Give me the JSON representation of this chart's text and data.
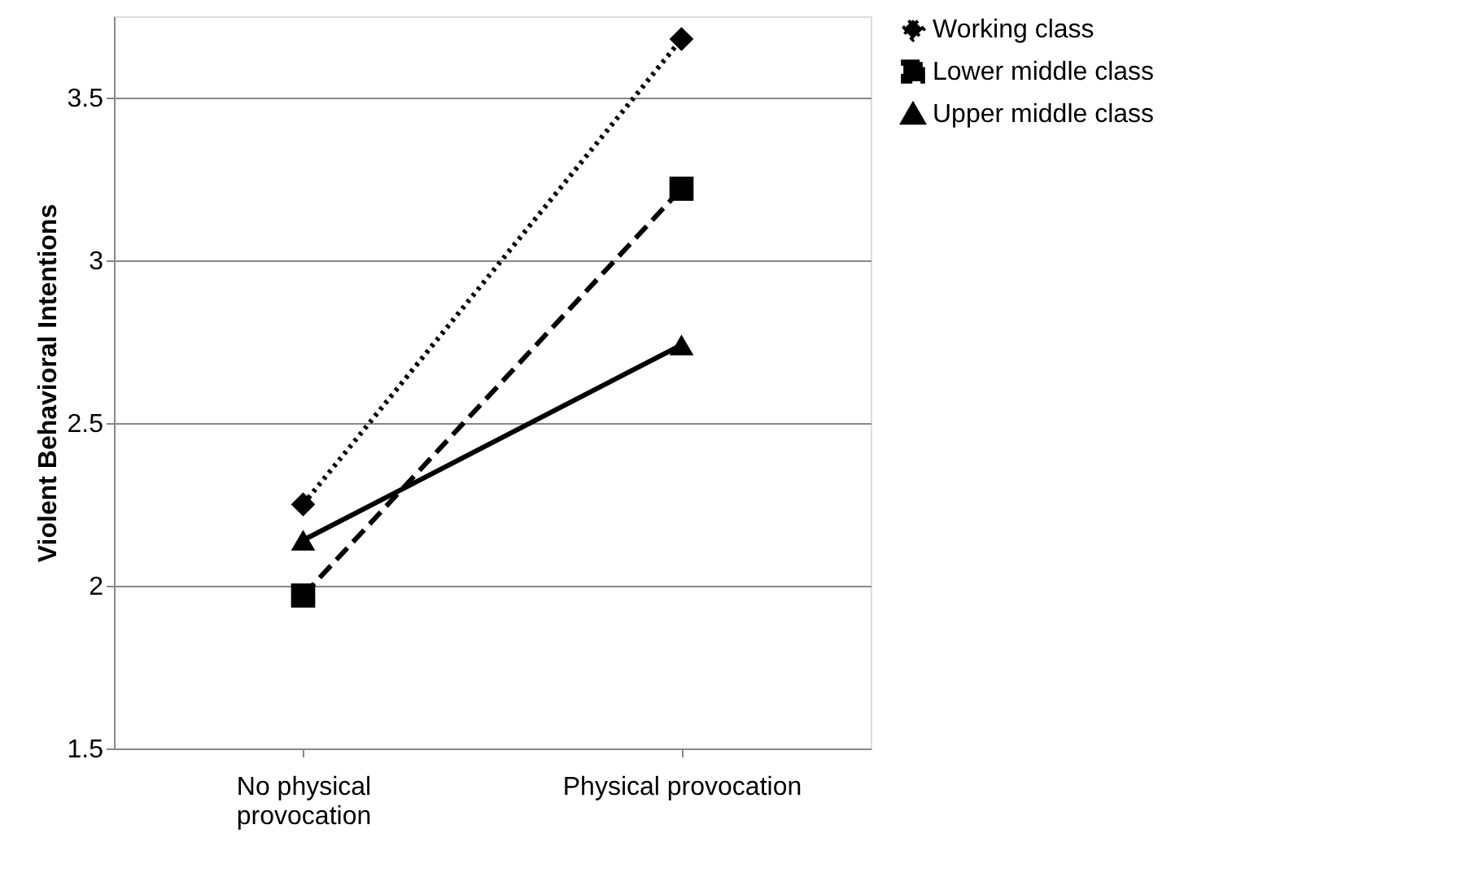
{
  "chart_data": {
    "type": "line",
    "ylabel": "Violent Behavioral Intentions",
    "categories": [
      "No physical provocation",
      "Physical provocation"
    ],
    "ylim": [
      1.5,
      3.75
    ],
    "yticks": [
      1.5,
      2,
      2.5,
      3,
      3.5
    ],
    "grid": "y",
    "legend": "right",
    "series": [
      {
        "name": "Working class",
        "color": "#000000",
        "values": [
          2.25,
          3.68
        ],
        "marker": "diamond",
        "line_style": "dotted"
      },
      {
        "name": "Lower middle class",
        "color": "#000000",
        "values": [
          1.97,
          3.22
        ],
        "marker": "square",
        "line_style": "dashed"
      },
      {
        "name": "Upper middle class",
        "color": "#000000",
        "values": [
          2.14,
          2.74
        ],
        "marker": "triangle",
        "line_style": "solid"
      }
    ]
  }
}
